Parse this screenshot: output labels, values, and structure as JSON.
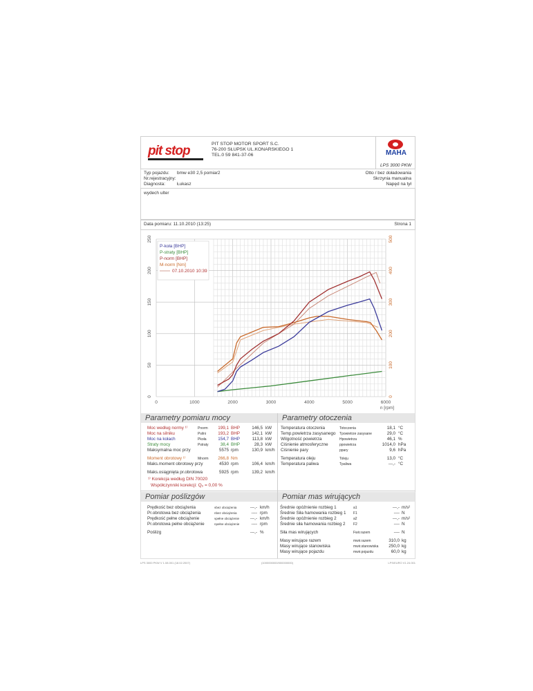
{
  "header": {
    "logo_text": "pit stop",
    "company": "PIT STOP MOTOR SPORT S.C.",
    "address": "76-200 SŁUPSK UL.KONARSKIEGO 1",
    "phone": "TEL.0 59 841-37-06",
    "dyno_logo": "MAHA",
    "dyno_model": "LPS 3000 PKW"
  },
  "vehicle": {
    "type_label": "Typ pojazdu:",
    "type_value": "bmw e30 2,5 pomiar2",
    "reg_label": "Nr.rejestracyjny:",
    "reg_value": "",
    "diag_label": "Diagnosta:",
    "diag_value": "Łukasz",
    "fuel": "Otto / bez doładowania",
    "gearbox": "Skrzynia manualna",
    "drive": "Napęd na tył"
  },
  "comment": "wydech ulter",
  "date_row": {
    "label": "Data pomiaru: 11.10.2010 (13:25)",
    "page": "Strona 1"
  },
  "chart_data": {
    "type": "line",
    "xlabel": "n [rpm]",
    "xlim": [
      0,
      6000
    ],
    "xticks": [
      0,
      1000,
      2000,
      3000,
      4000,
      5000,
      6000
    ],
    "ylim": [
      0,
      250
    ],
    "yticks": [
      0,
      50,
      100,
      150,
      200,
      250
    ],
    "y2lim": [
      0,
      500
    ],
    "y2ticks": [
      0,
      100,
      200,
      300,
      400,
      500
    ],
    "grid": true,
    "legend_position": "top-left",
    "legend": [
      "P-koła [BHP]",
      "P-straty [BHP]",
      "P-norm [BHP]",
      "M-norm [Nm]"
    ],
    "comparison_label": "07.10.2010 10:39",
    "series": [
      {
        "name": "P-koła [BHP]",
        "axis": "left",
        "color": "#3a3a9a",
        "x": [
          1600,
          1800,
          2000,
          2100,
          2200,
          2500,
          2800,
          3200,
          3600,
          4000,
          4500,
          5000,
          5300,
          5580,
          5700,
          5900
        ],
        "y": [
          8,
          12,
          25,
          40,
          47,
          58,
          70,
          80,
          95,
          118,
          135,
          145,
          150,
          155,
          140,
          105
        ]
      },
      {
        "name": "P-straty [BHP]",
        "axis": "left",
        "color": "#3a8a3a",
        "x": [
          1600,
          2000,
          3000,
          4000,
          5000,
          5900
        ],
        "y": [
          8,
          11,
          17,
          25,
          33,
          40
        ]
      },
      {
        "name": "P-norm [BHP]",
        "axis": "left",
        "color": "#a03030",
        "x": [
          1600,
          1900,
          2000,
          2100,
          2200,
          2500,
          2800,
          3200,
          3600,
          4000,
          4500,
          5000,
          5300,
          5580,
          5700,
          5900
        ],
        "y": [
          18,
          28,
          35,
          50,
          60,
          75,
          88,
          100,
          120,
          150,
          170,
          183,
          190,
          198,
          185,
          155
        ]
      },
      {
        "name": "M-norm [Nm]",
        "axis": "right",
        "color": "#c8692a",
        "x": [
          1600,
          1800,
          2000,
          2100,
          2200,
          2500,
          2800,
          3200,
          3600,
          4000,
          4200,
          4500,
          5000,
          5500,
          5600,
          5750,
          5900
        ],
        "y": [
          80,
          100,
          120,
          170,
          190,
          205,
          220,
          222,
          235,
          250,
          255,
          255,
          245,
          238,
          235,
          210,
          180
        ]
      },
      {
        "run": "07.10.2010 10:39",
        "axis": "left",
        "color": "#c98a7a",
        "x": [
          1600,
          2100,
          2800,
          3600,
          4000,
          4500,
          5000,
          5500,
          5750,
          5850
        ],
        "y": [
          15,
          45,
          85,
          115,
          140,
          160,
          175,
          190,
          197,
          180
        ]
      },
      {
        "run": "07.10.2010 10:39",
        "axis": "right",
        "color": "#e0a37a",
        "x": [
          1600,
          2000,
          2200,
          2800,
          3600,
          4500,
          5500,
          5800
        ],
        "y": [
          75,
          110,
          180,
          210,
          230,
          245,
          235,
          220
        ]
      }
    ]
  },
  "power": {
    "title": "Parametry pomiaru mocy",
    "rows": [
      {
        "label": "Moc według normy ¹⁾",
        "sym": "Pnorm",
        "v1": "199,1",
        "u1": "BHP",
        "v2": "146,5",
        "u2": "kW",
        "color": "#b03030"
      },
      {
        "label": "Moc na silniku",
        "sym": "Psilni",
        "v1": "193,2",
        "u1": "BHP",
        "v2": "142,1",
        "u2": "kW",
        "color": "#b03030"
      },
      {
        "label": "Moc na kołach",
        "sym": "Pkoła",
        "v1": "154,7",
        "u1": "BHP",
        "v2": "113,8",
        "u2": "kW",
        "color": "#333399"
      },
      {
        "label": "Straty mocy",
        "sym": "Pstraty",
        "v1": "38,4",
        "u1": "BHP",
        "v2": "28,3",
        "u2": "kW",
        "color": "#3a8a3a"
      },
      {
        "label": "Maksymalna moc przy",
        "sym": "",
        "v1": "5575",
        "u1": "rpm",
        "v2": "130,9",
        "u2": "km/h",
        "color": "#333"
      },
      {
        "label": "Moment obrotowy ¹⁾",
        "sym": "Mnorm",
        "v1": "266,8",
        "u1": "Nm",
        "v2": "",
        "u2": "",
        "color": "#c8692a"
      },
      {
        "label": "Maks.moment obrotowy przy",
        "sym": "",
        "v1": "4530",
        "u1": "rpm",
        "v2": "106,4",
        "u2": "km/h",
        "color": "#333"
      },
      {
        "label": "Maks.osiągnięta pr.obrotowa",
        "sym": "",
        "v1": "5925",
        "u1": "rpm",
        "v2": "139,2",
        "u2": "km/h",
        "color": "#333"
      }
    ],
    "correction": "¹⁾ Korekcja według DIN 70020",
    "coef": "Współczynniki korekcji: Qₒ =  0,00 %"
  },
  "ambient": {
    "title": "Parametry otoczenia",
    "rows": [
      {
        "label": "Temperatura otoczenia",
        "sym": "Totoczenia",
        "v": "18,1",
        "u": "°C"
      },
      {
        "label": "Temp.powietrza zasysanego",
        "sym": "Tpowietrze zasysane",
        "v": "29,0",
        "u": "°C"
      },
      {
        "label": "Wilgotność powietrza",
        "sym": "Hpowietrza",
        "v": "46,1",
        "u": "%"
      },
      {
        "label": "Ciśnienie atmosferyczne",
        "sym": "ppowietrza",
        "v": "1014,0",
        "u": "hPa"
      },
      {
        "label": "Ciśnienie pary",
        "sym": "ppary",
        "v": "9,6",
        "u": "hPa"
      },
      {
        "label": "Temperatura oleju",
        "sym": "Toleju",
        "v": "13,0",
        "u": "°C"
      },
      {
        "label": "Temperatura paliwa",
        "sym": "Tpaliwa",
        "v": "---,-",
        "u": "°C"
      }
    ]
  },
  "slip": {
    "title": "Pomiar poślizgów",
    "rows": [
      {
        "label": "Prędkość bez obciążenia",
        "sym": "vbez obciążenia",
        "v": "---,-",
        "u": "km/h"
      },
      {
        "label": "Pr.obrotowa bez obciążenia",
        "sym": "nbez obciążenia",
        "v": "----",
        "u": "rpm"
      },
      {
        "label": "Prędkość pełne obciążenie",
        "sym": "vpełne obciążenie",
        "v": "---,-",
        "u": "km/h"
      },
      {
        "label": "Pr.obrotowa pełne obciążenie",
        "sym": "npełne obciążenie",
        "v": "----",
        "u": "rpm"
      },
      {
        "label": "Poślizg",
        "sym": "",
        "v": "---,-",
        "u": "%"
      }
    ]
  },
  "mass": {
    "title": "Pomiar mas wirujących",
    "rows": [
      {
        "label": "Średnie opóźnienie rozbieg 1",
        "sym": "a1",
        "v": "---,-",
        "u": "m/s²"
      },
      {
        "label": "Średnie Siła hamowania rozbieg 1",
        "sym": "F1",
        "v": "----",
        "u": "N"
      },
      {
        "label": "Średnie opóźnienie rozbieg 2",
        "sym": "a2",
        "v": "---,-",
        "u": "m/s²"
      },
      {
        "label": "Średnie siła hamowania rozbieg 2",
        "sym": "F2",
        "v": "----",
        "u": "N"
      },
      {
        "label": "Siła mas wirujących",
        "sym": "Fwir.razem",
        "v": "----",
        "u": "N"
      },
      {
        "label": "Masy wirujące razem",
        "sym": "mwir.razem",
        "v": "310,0",
        "u": "kg"
      },
      {
        "label": "Masy wirujące stanowiska",
        "sym": "mwir.stanowiska",
        "v": "250,0",
        "u": "kg"
      },
      {
        "label": "Masy wirujące pojazdu",
        "sym": "mwir.pojazdu",
        "v": "60,0",
        "u": "kg"
      }
    ]
  },
  "footer": {
    "left": "LPS 3000 PKW V 1.08.001 (18.02.2007)",
    "center": "(1000000000/000000000)",
    "right": "LPS/EURO V1.24.001"
  }
}
